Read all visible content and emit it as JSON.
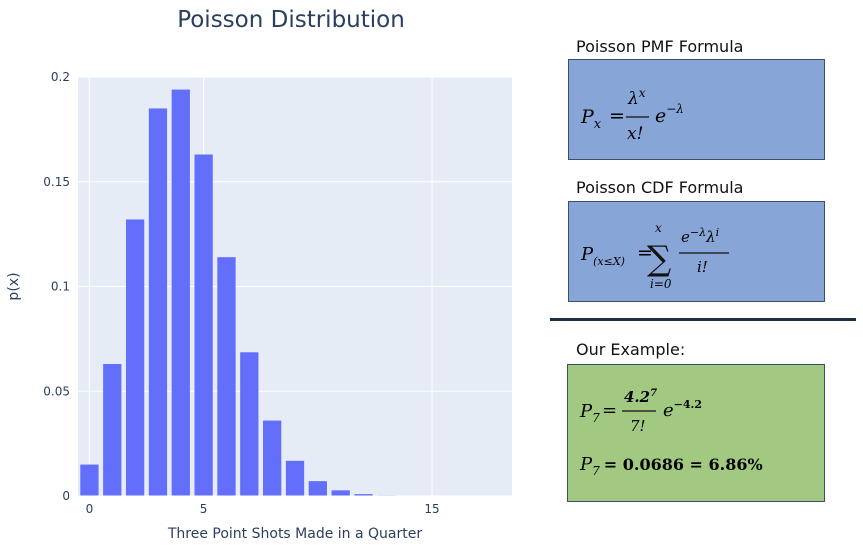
{
  "chart_data": {
    "type": "bar",
    "title": "Poisson Distribution",
    "xlabel": "Three Point Shots Made in a Quarter",
    "ylabel": "p(x)",
    "x": [
      0,
      1,
      2,
      3,
      4,
      5,
      6,
      7,
      8,
      9,
      10,
      11,
      12,
      13,
      14,
      15,
      16,
      17,
      18
    ],
    "values": [
      0.015,
      0.063,
      0.132,
      0.185,
      0.194,
      0.163,
      0.114,
      0.0686,
      0.036,
      0.0168,
      0.0071,
      0.0027,
      0.0009,
      0.0003,
      0.0001,
      0.0,
      0.0,
      0.0,
      0.0
    ],
    "xlim": [
      -0.5,
      18.5
    ],
    "ylim": [
      0,
      0.2
    ],
    "xticks": [
      0,
      5,
      15
    ],
    "yticks": [
      0,
      0.05,
      0.1,
      0.15,
      0.2
    ],
    "ytick_labels": [
      "0",
      "0.05",
      "0.1",
      "0.15",
      "0.2"
    ],
    "grid": true,
    "colors": {
      "bar": "#636efa",
      "plot_bg": "#e5ecf6",
      "grid": "#ffffff",
      "axis_text": "#2a3f5f"
    }
  },
  "panels": {
    "pmf": {
      "title": "Poisson PMF Formula",
      "bg": "#87a5d6",
      "lhs_base": "P",
      "lhs_sub": "x",
      "num_base": "λ",
      "num_sup": "x",
      "den": "x!",
      "exp_base": "e",
      "exp_sup": "−λ"
    },
    "cdf": {
      "title": "Poisson CDF Formula",
      "bg": "#87a5d6",
      "lhs_base": "P",
      "lhs_sub": "(x≤X)",
      "sum_upper": "x",
      "sum_symbol": "∑",
      "sum_lower": "i=0",
      "num": "e",
      "num_sup1": "−λ",
      "num_mid": "λ",
      "num_sup2": "i",
      "den": "i!"
    },
    "example": {
      "title": "Our Example:",
      "bg": "#a2c982",
      "line1_lhs_base": "P",
      "line1_lhs_sub": "7",
      "line1_num": "4.2",
      "line1_num_sup": "7",
      "line1_den": "7!",
      "line1_exp_base": "e",
      "line1_exp_sup": "−4.2",
      "line2_lhs_base": "P",
      "line2_lhs_sub": "7",
      "line2_rhs": "= 0.0686 = 6.86%"
    }
  }
}
